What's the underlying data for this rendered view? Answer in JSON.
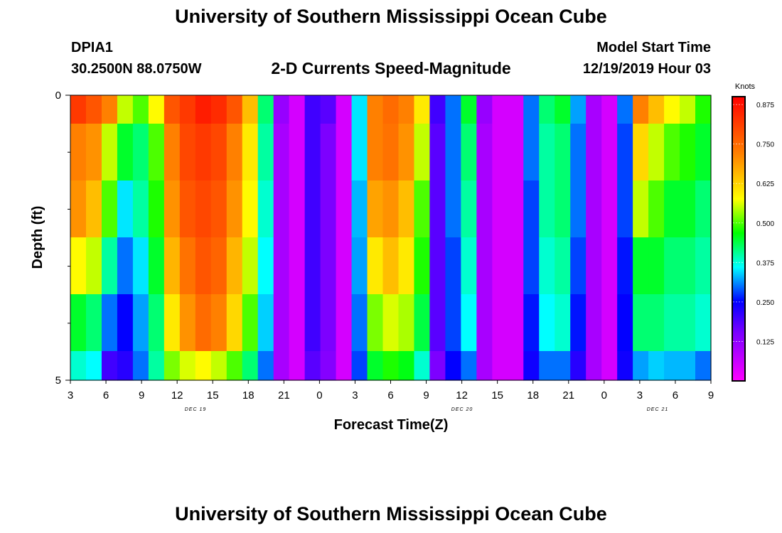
{
  "header": {
    "title": "University of Southern Mississippi Ocean Cube",
    "station_id": "DPIA1",
    "coordinates": "30.2500N 88.0750W",
    "product": "2-D Currents Speed-Magnitude",
    "model_start_label": "Model Start Time",
    "model_start_value": "12/19/2019 Hour 03"
  },
  "footer": {
    "title": "University of Southern Mississippi Ocean Cube"
  },
  "chart_data": {
    "type": "heatmap",
    "title": "2-D Currents Speed-Magnitude",
    "xlabel": "Forecast Time(Z)",
    "ylabel": "Depth (ft)",
    "x_tick_labels": [
      "3",
      "6",
      "9",
      "12",
      "15",
      "18",
      "21",
      "0",
      "3",
      "6",
      "9",
      "12",
      "15",
      "18",
      "21",
      "0",
      "3",
      "6",
      "9"
    ],
    "date_labels": [
      "DEC 19",
      "DEC 20",
      "DEC 21"
    ],
    "y_tick_labels": [
      "0",
      "5"
    ],
    "xlim_hours": [
      0,
      54
    ],
    "ylim_ft": [
      0,
      5
    ],
    "depth_layers_ft": [
      0.2,
      1,
      2,
      3,
      4,
      4.8
    ],
    "colorbar": {
      "label": "Knots",
      "range": [
        0,
        0.9
      ],
      "tick_labels": [
        "0.875",
        "0.750",
        "0.625",
        "0.500",
        "0.375",
        "0.250",
        "0.125"
      ],
      "tick_values": [
        0.875,
        0.75,
        0.625,
        0.5,
        0.375,
        0.25,
        0.125
      ]
    },
    "values": [
      [
        0.82,
        0.78,
        0.72,
        0.55,
        0.5,
        0.58,
        0.78,
        0.82,
        0.86,
        0.84,
        0.78,
        0.65,
        0.42,
        0.12,
        0.05,
        0.2,
        0.18,
        0.05,
        0.35,
        0.72,
        0.75,
        0.72,
        0.6,
        0.2,
        0.3,
        0.45,
        0.12,
        0.05,
        0.05,
        0.3,
        0.42,
        0.45,
        0.32,
        0.1,
        0.05,
        0.3,
        0.72,
        0.65,
        0.58,
        0.55,
        0.48
      ],
      [
        0.72,
        0.7,
        0.55,
        0.45,
        0.42,
        0.5,
        0.72,
        0.8,
        0.82,
        0.8,
        0.72,
        0.6,
        0.4,
        0.1,
        0.05,
        0.2,
        0.15,
        0.05,
        0.35,
        0.72,
        0.74,
        0.7,
        0.55,
        0.18,
        0.3,
        0.42,
        0.1,
        0.05,
        0.05,
        0.3,
        0.4,
        0.42,
        0.3,
        0.1,
        0.05,
        0.28,
        0.62,
        0.55,
        0.5,
        0.48,
        0.45
      ],
      [
        0.7,
        0.65,
        0.5,
        0.35,
        0.4,
        0.48,
        0.7,
        0.78,
        0.8,
        0.78,
        0.7,
        0.58,
        0.38,
        0.1,
        0.05,
        0.2,
        0.15,
        0.05,
        0.33,
        0.68,
        0.7,
        0.65,
        0.5,
        0.18,
        0.3,
        0.4,
        0.1,
        0.05,
        0.05,
        0.28,
        0.4,
        0.42,
        0.3,
        0.1,
        0.05,
        0.28,
        0.55,
        0.5,
        0.45,
        0.45,
        0.42
      ],
      [
        0.58,
        0.55,
        0.4,
        0.3,
        0.35,
        0.45,
        0.66,
        0.74,
        0.78,
        0.76,
        0.66,
        0.55,
        0.36,
        0.1,
        0.05,
        0.2,
        0.15,
        0.05,
        0.32,
        0.6,
        0.65,
        0.6,
        0.48,
        0.18,
        0.28,
        0.38,
        0.1,
        0.05,
        0.05,
        0.28,
        0.38,
        0.4,
        0.28,
        0.1,
        0.05,
        0.26,
        0.45,
        0.45,
        0.42,
        0.42,
        0.4
      ],
      [
        0.45,
        0.42,
        0.3,
        0.25,
        0.32,
        0.42,
        0.6,
        0.7,
        0.75,
        0.72,
        0.62,
        0.5,
        0.34,
        0.1,
        0.05,
        0.2,
        0.15,
        0.05,
        0.3,
        0.52,
        0.56,
        0.54,
        0.44,
        0.18,
        0.28,
        0.36,
        0.1,
        0.05,
        0.05,
        0.26,
        0.36,
        0.38,
        0.26,
        0.1,
        0.05,
        0.25,
        0.42,
        0.42,
        0.4,
        0.4,
        0.38
      ],
      [
        0.38,
        0.36,
        0.2,
        0.22,
        0.3,
        0.4,
        0.52,
        0.56,
        0.58,
        0.55,
        0.5,
        0.42,
        0.3,
        0.1,
        0.05,
        0.18,
        0.14,
        0.05,
        0.28,
        0.45,
        0.48,
        0.46,
        0.38,
        0.15,
        0.25,
        0.3,
        0.1,
        0.05,
        0.05,
        0.24,
        0.3,
        0.3,
        0.22,
        0.1,
        0.05,
        0.24,
        0.32,
        0.34,
        0.33,
        0.33,
        0.3
      ]
    ]
  }
}
